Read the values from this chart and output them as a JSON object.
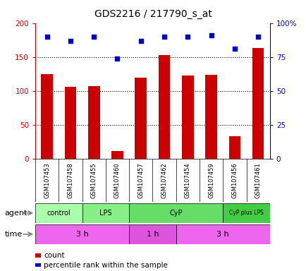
{
  "title": "GDS2216 / 217790_s_at",
  "samples": [
    "GSM107453",
    "GSM107458",
    "GSM107455",
    "GSM107460",
    "GSM107457",
    "GSM107462",
    "GSM107454",
    "GSM107459",
    "GSM107456",
    "GSM107461"
  ],
  "counts": [
    125,
    106,
    107,
    11,
    119,
    153,
    123,
    124,
    33,
    163
  ],
  "percentile_ranks": [
    90,
    87,
    90,
    74,
    87,
    90,
    90,
    91,
    81,
    90
  ],
  "ylim_left": [
    0,
    200
  ],
  "ylim_right": [
    0,
    100
  ],
  "yticks_left": [
    0,
    50,
    100,
    150,
    200
  ],
  "yticks_right": [
    0,
    25,
    50,
    75,
    100
  ],
  "yticklabels_left": [
    "0",
    "50",
    "100",
    "150",
    "200"
  ],
  "yticklabels_right": [
    "0",
    "25",
    "50",
    "75",
    "100%"
  ],
  "bar_color": "#cc0000",
  "dot_color": "#0000cc",
  "bar_width": 0.5,
  "agent_groups": [
    {
      "label": "control",
      "start": 0,
      "end": 2,
      "color": "#aaffaa"
    },
    {
      "label": "LPS",
      "start": 2,
      "end": 4,
      "color": "#88ee88"
    },
    {
      "label": "CyP",
      "start": 4,
      "end": 8,
      "color": "#66dd66"
    },
    {
      "label": "CyP plus LPS",
      "start": 8,
      "end": 10,
      "color": "#44cc44"
    }
  ],
  "time_groups": [
    {
      "label": "3 h",
      "start": 0,
      "end": 4,
      "color": "#ee66ee"
    },
    {
      "label": "1 h",
      "start": 4,
      "end": 6,
      "color": "#dd55dd"
    },
    {
      "label": "3 h",
      "start": 6,
      "end": 10,
      "color": "#ee66ee"
    }
  ],
  "legend_items": [
    {
      "color": "#cc0000",
      "label": "count"
    },
    {
      "color": "#0000cc",
      "label": "percentile rank within the sample"
    }
  ],
  "background_color": "#ffffff",
  "plot_bg_color": "#ffffff",
  "sample_bg_color": "#d8d8d8"
}
